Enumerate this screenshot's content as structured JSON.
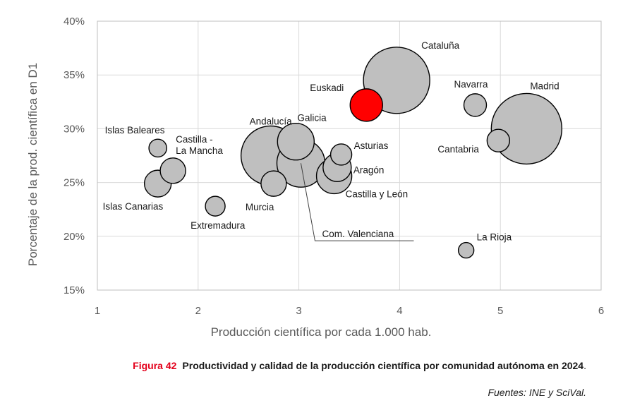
{
  "chart_data": {
    "type": "scatter",
    "subtype": "bubble",
    "xlabel": "Producción científica por cada 1.000 hab.",
    "ylabel": "Porcentaje de la prod. científica en D1",
    "xlim": [
      1,
      6
    ],
    "ylim": [
      15,
      40
    ],
    "x_ticks": [
      1,
      2,
      3,
      4,
      5,
      6
    ],
    "y_ticks": [
      15,
      20,
      25,
      30,
      35,
      40
    ],
    "y_tick_labels": [
      "15%",
      "20%",
      "25%",
      "30%",
      "35%",
      "40%"
    ],
    "grid": true,
    "size_note": "relative bubble size",
    "points": [
      {
        "label": "Cataluña",
        "x": 3.97,
        "y": 34.5,
        "size": 2.35,
        "color": "#bfbfbf",
        "label_lines": [
          "Cataluña"
        ]
      },
      {
        "label": "Madrid",
        "x": 5.26,
        "y": 30.0,
        "size": 2.5,
        "color": "#bfbfbf",
        "label_lines": [
          "Madrid"
        ]
      },
      {
        "label": "Andalucía",
        "x": 2.72,
        "y": 27.5,
        "size": 2.1,
        "color": "#bfbfbf",
        "label_lines": [
          "Andalucía"
        ]
      },
      {
        "label": "Com. Valenciana",
        "x": 3.02,
        "y": 26.8,
        "size": 1.7,
        "color": "#bfbfbf",
        "label_lines": [
          "Com. Valenciana"
        ]
      },
      {
        "label": "Galicia",
        "x": 2.97,
        "y": 28.8,
        "size": 1.3,
        "color": "#bfbfbf",
        "label_lines": [
          "Galicia"
        ]
      },
      {
        "label": "Castilla y León",
        "x": 3.35,
        "y": 25.6,
        "size": 1.25,
        "color": "#bfbfbf",
        "label_lines": [
          "Castilla y León"
        ]
      },
      {
        "label": "Euskadi",
        "x": 3.67,
        "y": 32.2,
        "size": 1.15,
        "color": "#ff0000",
        "label_lines": [
          "Euskadi"
        ]
      },
      {
        "label": "Aragón",
        "x": 3.38,
        "y": 26.4,
        "size": 1.0,
        "color": "#bfbfbf",
        "label_lines": [
          "Aragón"
        ]
      },
      {
        "label": "Murcia",
        "x": 2.75,
        "y": 24.9,
        "size": 0.9,
        "color": "#bfbfbf",
        "label_lines": [
          "Murcia"
        ]
      },
      {
        "label": "Asturias",
        "x": 3.42,
        "y": 27.6,
        "size": 0.75,
        "color": "#bfbfbf",
        "label_lines": [
          "Asturias"
        ]
      },
      {
        "label": "Islas Canarias",
        "x": 1.6,
        "y": 24.9,
        "size": 0.95,
        "color": "#bfbfbf",
        "label_lines": [
          "Islas Canarias"
        ]
      },
      {
        "label": "Castilla - La Mancha",
        "x": 1.75,
        "y": 26.1,
        "size": 0.9,
        "color": "#bfbfbf",
        "label_lines": [
          "Castilla -",
          "La Mancha"
        ]
      },
      {
        "label": "Navarra",
        "x": 4.75,
        "y": 32.2,
        "size": 0.8,
        "color": "#bfbfbf",
        "label_lines": [
          "Navarra"
        ]
      },
      {
        "label": "Cantabria",
        "x": 4.98,
        "y": 28.9,
        "size": 0.8,
        "color": "#bfbfbf",
        "label_lines": [
          "Cantabria"
        ]
      },
      {
        "label": "Extremadura",
        "x": 2.17,
        "y": 22.8,
        "size": 0.7,
        "color": "#bfbfbf",
        "label_lines": [
          "Extremadura"
        ]
      },
      {
        "label": "Islas Baleares",
        "x": 1.6,
        "y": 28.2,
        "size": 0.63,
        "color": "#bfbfbf",
        "label_lines": [
          "Islas Baleares"
        ]
      },
      {
        "label": "La Rioja",
        "x": 4.66,
        "y": 18.7,
        "size": 0.55,
        "color": "#bfbfbf",
        "label_lines": [
          "La Rioja"
        ]
      }
    ]
  },
  "caption": {
    "figure_number": "Figura 42",
    "title": "Productividad y calidad de la producción científica por comunidad autónoma en 2024",
    "period": ".",
    "source": "Fuentes: INE y SciVal."
  },
  "colors": {
    "accent": "#e3001b",
    "bubble": "#bfbfbf",
    "highlight": "#ff0000",
    "grid": "#d9d9d9"
  }
}
